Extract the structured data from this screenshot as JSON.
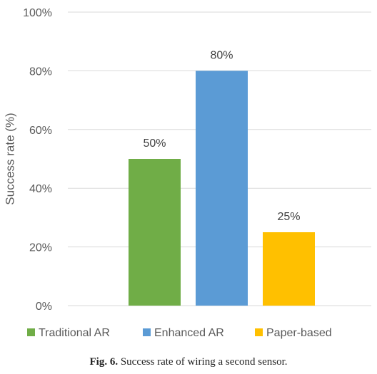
{
  "chart_data": {
    "type": "bar",
    "categories": [
      "Traditional AR",
      "Enhanced AR",
      "Paper-based"
    ],
    "values": [
      50,
      80,
      25
    ],
    "data_labels": [
      "50%",
      "80%",
      "25%"
    ],
    "colors": [
      "#70AD47",
      "#5B9BD5",
      "#FFC000"
    ],
    "ylabel": "Success rate (%)",
    "ylim": [
      0,
      100
    ],
    "yticks": [
      0,
      20,
      40,
      60,
      80,
      100
    ],
    "ytick_labels": [
      "0%",
      "20%",
      "40%",
      "60%",
      "80%",
      "100%"
    ],
    "grid": true,
    "legend": [
      "Traditional AR",
      "Enhanced AR",
      "Paper-based"
    ],
    "legend_position": "bottom"
  },
  "caption": {
    "figure": "Fig. 6.",
    "text": "Success rate of wiring a second sensor."
  }
}
